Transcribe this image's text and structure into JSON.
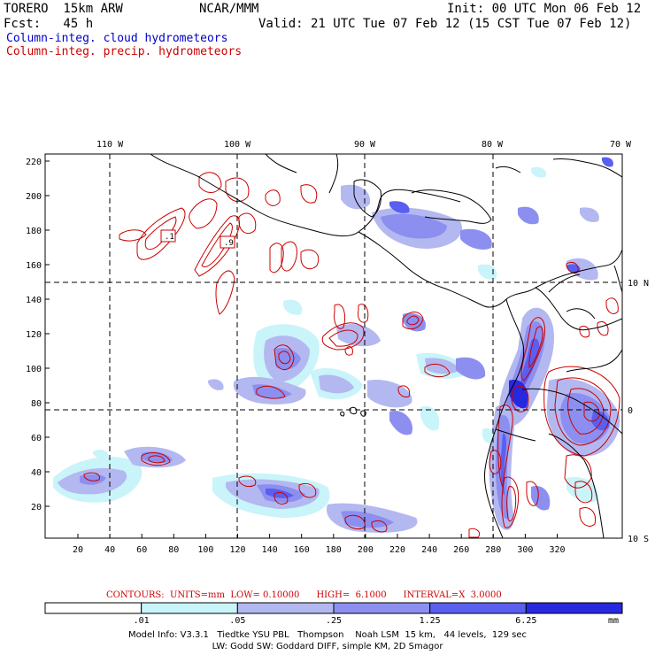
{
  "header": {
    "model": "TORERO  15km ARW",
    "center": "NCAR/MMM",
    "init": "Init: 00 UTC Mon 06 Feb 12",
    "fcst": "Fcst:   45 h",
    "valid": "Valid: 21 UTC Tue 07 Feb 12 (15 CST Tue 07 Feb 12)",
    "legend_blue": "Column-integ. cloud hydrometeors",
    "legend_red": "Column-integ. precip. hydrometeors"
  },
  "map": {
    "lon_labels": [
      "110 W",
      "100 W",
      "90 W",
      "80 W",
      "70 W"
    ],
    "lat_labels": [
      "10 N",
      "0",
      "10 S"
    ],
    "y_ticks": [
      "220",
      "200",
      "180",
      "160",
      "140",
      "120",
      "100",
      "80",
      "60",
      "40",
      "20"
    ],
    "x_ticks": [
      "20",
      "40",
      "60",
      "80",
      "100",
      "120",
      "140",
      "160",
      "180",
      "200",
      "220",
      "240",
      "260",
      "280",
      "300",
      "320"
    ],
    "box_labels": [
      ".1",
      ".9"
    ],
    "colors": {
      "cloud_light": "#c8f4fa",
      "cloud_1": "#b3b8f0",
      "cloud_2": "#8c8ff0",
      "cloud_3": "#5a5ff0",
      "cloud_4": "#2828e0",
      "precip": "#cc0000",
      "coast": "#000000"
    }
  },
  "contours_info": "CONTOURS:  UNITS=mm  LOW= 0.10000      HIGH=  6.1000      INTERVAL=X  3.0000",
  "colorbar": {
    "labels": [
      ".01",
      ".05",
      ".25",
      "1.25",
      "6.25"
    ],
    "unit": "mm",
    "colors": [
      "#ffffff",
      "#c8f4fa",
      "#b3b8f0",
      "#8c8ff0",
      "#5a5ff0",
      "#2828e0"
    ]
  },
  "model_info": {
    "line1": "Model Info: V3.3.1   Tiedtke YSU PBL   Thompson    Noah LSM  15 km,   44 levels,  129 sec",
    "line2": "LW: Godd SW: Goddard DIFF, simple KM, 2D Smagor"
  }
}
